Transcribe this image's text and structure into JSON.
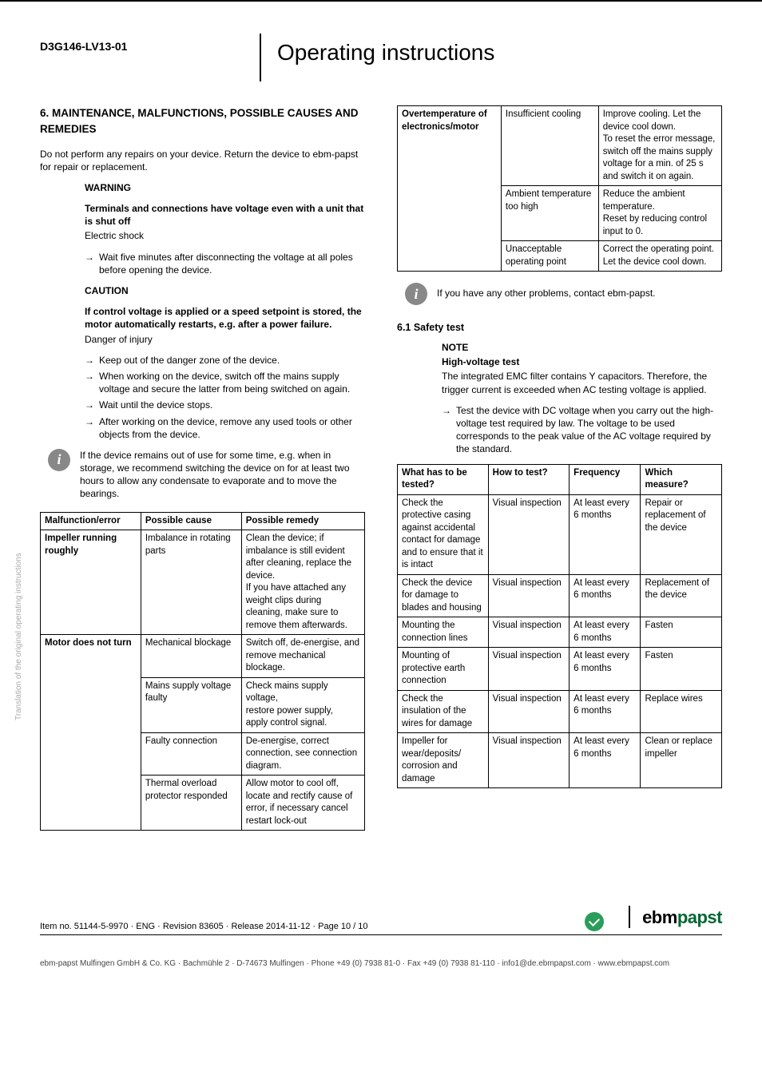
{
  "header": {
    "doc_id": "D3G146-LV13-01",
    "title": "Operating instructions"
  },
  "section": {
    "heading": "6. MAINTENANCE, MALFUNCTIONS, POSSIBLE CAUSES AND REMEDIES",
    "intro": "Do not perform any repairs on your device. Return the device to ebm-papst for repair or replacement."
  },
  "warning": {
    "label": "WARNING",
    "bold_text": "Terminals and connections have voltage even with a unit that is shut off",
    "line": "Electric shock",
    "item": "Wait five minutes after disconnecting the voltage at all poles before opening the device."
  },
  "caution": {
    "label": "CAUTION",
    "bold_text": "If control voltage is applied or a speed setpoint is stored, the motor automatically restarts, e.g. after a power failure.",
    "line": "Danger of injury",
    "items": [
      "Keep out of the danger zone of the device.",
      "When working on the device, switch off the mains supply voltage and secure the latter from being switched on again.",
      "Wait until the device stops.",
      "After working on the device, remove any used tools or other objects from the device."
    ]
  },
  "info1": "If the device remains out of use for some time, e.g. when in storage, we recommend switching the device on for at least two hours to allow any condensate to evaporate and to move the bearings.",
  "malfunction_table": {
    "headers": [
      "Malfunction/error",
      "Possible cause",
      "Possible remedy"
    ],
    "rows": [
      [
        "Impeller running roughly",
        "Imbalance in rotating parts",
        "Clean the device; if imbalance is still evident after cleaning, replace the device.\nIf you have attached any weight clips during cleaning, make sure to remove them afterwards."
      ],
      [
        "Motor does not turn",
        "Mechanical blockage",
        "Switch off, de-energise, and remove mechanical blockage."
      ],
      [
        "",
        "Mains supply voltage faulty",
        "Check mains supply voltage,\nrestore power supply,\napply control signal."
      ],
      [
        "",
        "Faulty connection",
        "De-energise, correct connection, see connection diagram."
      ],
      [
        "",
        "Thermal overload protector responded",
        "Allow motor to cool off, locate and rectify cause of error, if necessary cancel restart lock-out"
      ]
    ]
  },
  "overtemp_table": {
    "rows": [
      [
        "Overtemperature of electronics/motor",
        "Insufficient cooling",
        "Improve cooling. Let the device cool down.\nTo reset the error message, switch off the mains supply voltage for a min. of 25 s and switch it on again."
      ],
      [
        "",
        "Ambient temperature too high",
        "Reduce the ambient temperature.\nReset by reducing control input to 0."
      ],
      [
        "",
        "Unacceptable operating point",
        "Correct the operating point. Let the device cool down."
      ]
    ]
  },
  "info2": "If you have any other problems, contact ebm-papst.",
  "safety": {
    "heading": "6.1 Safety test",
    "note_label": "NOTE",
    "note_bold": "High-voltage test",
    "note_text": "The integrated EMC filter contains Y capacitors. Therefore, the trigger current is exceeded when AC testing voltage is applied.",
    "note_item": "Test the device with DC voltage when you carry out the high-voltage test required by law. The voltage to be used corresponds to the peak value of the AC voltage required by the standard."
  },
  "safety_table": {
    "headers": [
      "What has to be tested?",
      "How to test?",
      "Frequency",
      "Which measure?"
    ],
    "rows": [
      [
        "Check the protective casing against accidental contact for damage and to ensure that it is intact",
        "Visual inspection",
        "At least every 6 months",
        "Repair or replacement of the device"
      ],
      [
        "Check the device for damage to blades and housing",
        "Visual inspection",
        "At least every 6 months",
        "Replacement of the device"
      ],
      [
        "Mounting the connection lines",
        "Visual inspection",
        "At least every 6 months",
        "Fasten"
      ],
      [
        "Mounting of protective earth connection",
        "Visual inspection",
        "At least every 6 months",
        "Fasten"
      ],
      [
        "Check the insulation of the wires for damage",
        "Visual inspection",
        "At least every 6 months",
        "Replace wires"
      ],
      [
        "Impeller for wear/deposits/ corrosion and damage",
        "Visual inspection",
        "At least every 6 months",
        "Clean or replace impeller"
      ]
    ]
  },
  "side_text": "Translation of the original operating instructions",
  "footer": {
    "line1": "Item no. 51144-5-9970 · ENG · Revision 83605 · Release 2014-11-12 · Page 10 / 10",
    "logo_ebm": "ebm",
    "logo_papst": "papst",
    "line2": "ebm-papst Mulfingen GmbH & Co. KG · Bachmühle 2 · D-74673 Mulfingen · Phone +49 (0) 7938 81-0 · Fax +49 (0) 7938 81-110 · info1@de.ebmpapst.com · www.ebmpapst.com"
  }
}
